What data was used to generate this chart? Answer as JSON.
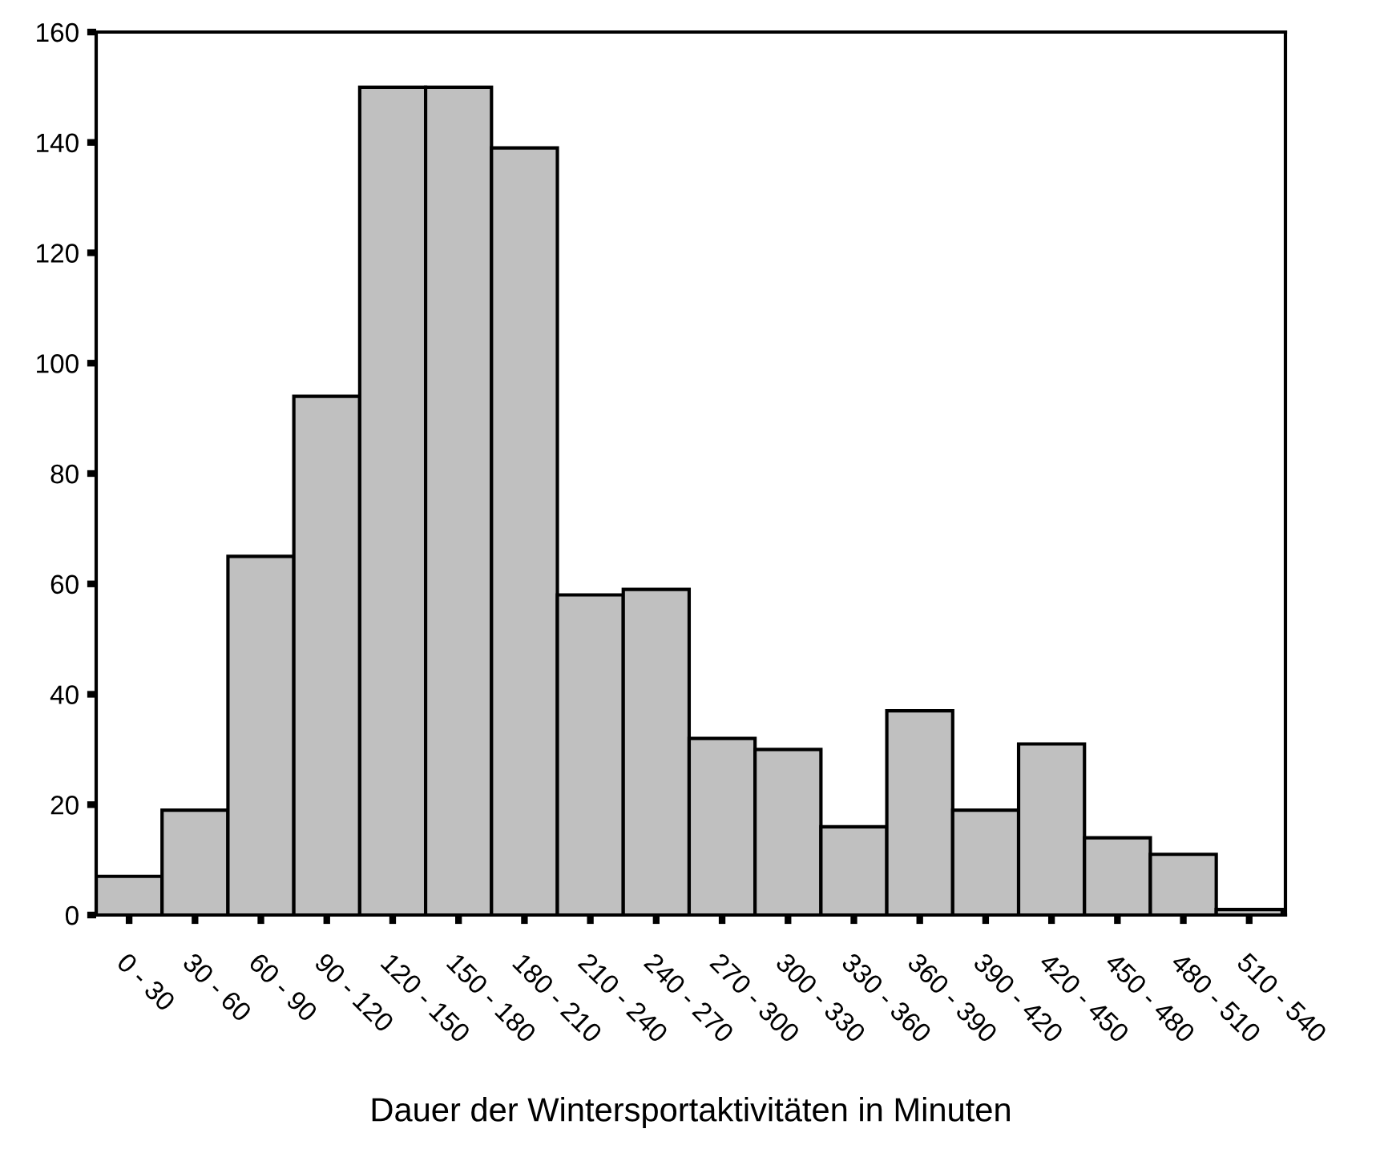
{
  "chart_data": {
    "type": "bar",
    "xlabel": "Dauer der Wintersportaktivitäten in Minuten",
    "categories": [
      "0 - 30",
      "30 - 60",
      "60 - 90",
      "90 - 120",
      "120 - 150",
      "150 - 180",
      "180 - 210",
      "210 - 240",
      "240 - 270",
      "270 - 300",
      "300 - 330",
      "330 - 360",
      "360 - 390",
      "390 - 420",
      "420 - 450",
      "450 - 480",
      "480 - 510",
      "510 - 540"
    ],
    "values": [
      7,
      19,
      65,
      94,
      150,
      150,
      139,
      58,
      59,
      32,
      30,
      16,
      37,
      19,
      31,
      14,
      11,
      1
    ],
    "color": "#c0c0c0",
    "ylim": [
      0,
      160
    ],
    "yticks": [
      0,
      20,
      40,
      60,
      80,
      100,
      120,
      140,
      160
    ],
    "grid": false,
    "legend": false
  }
}
